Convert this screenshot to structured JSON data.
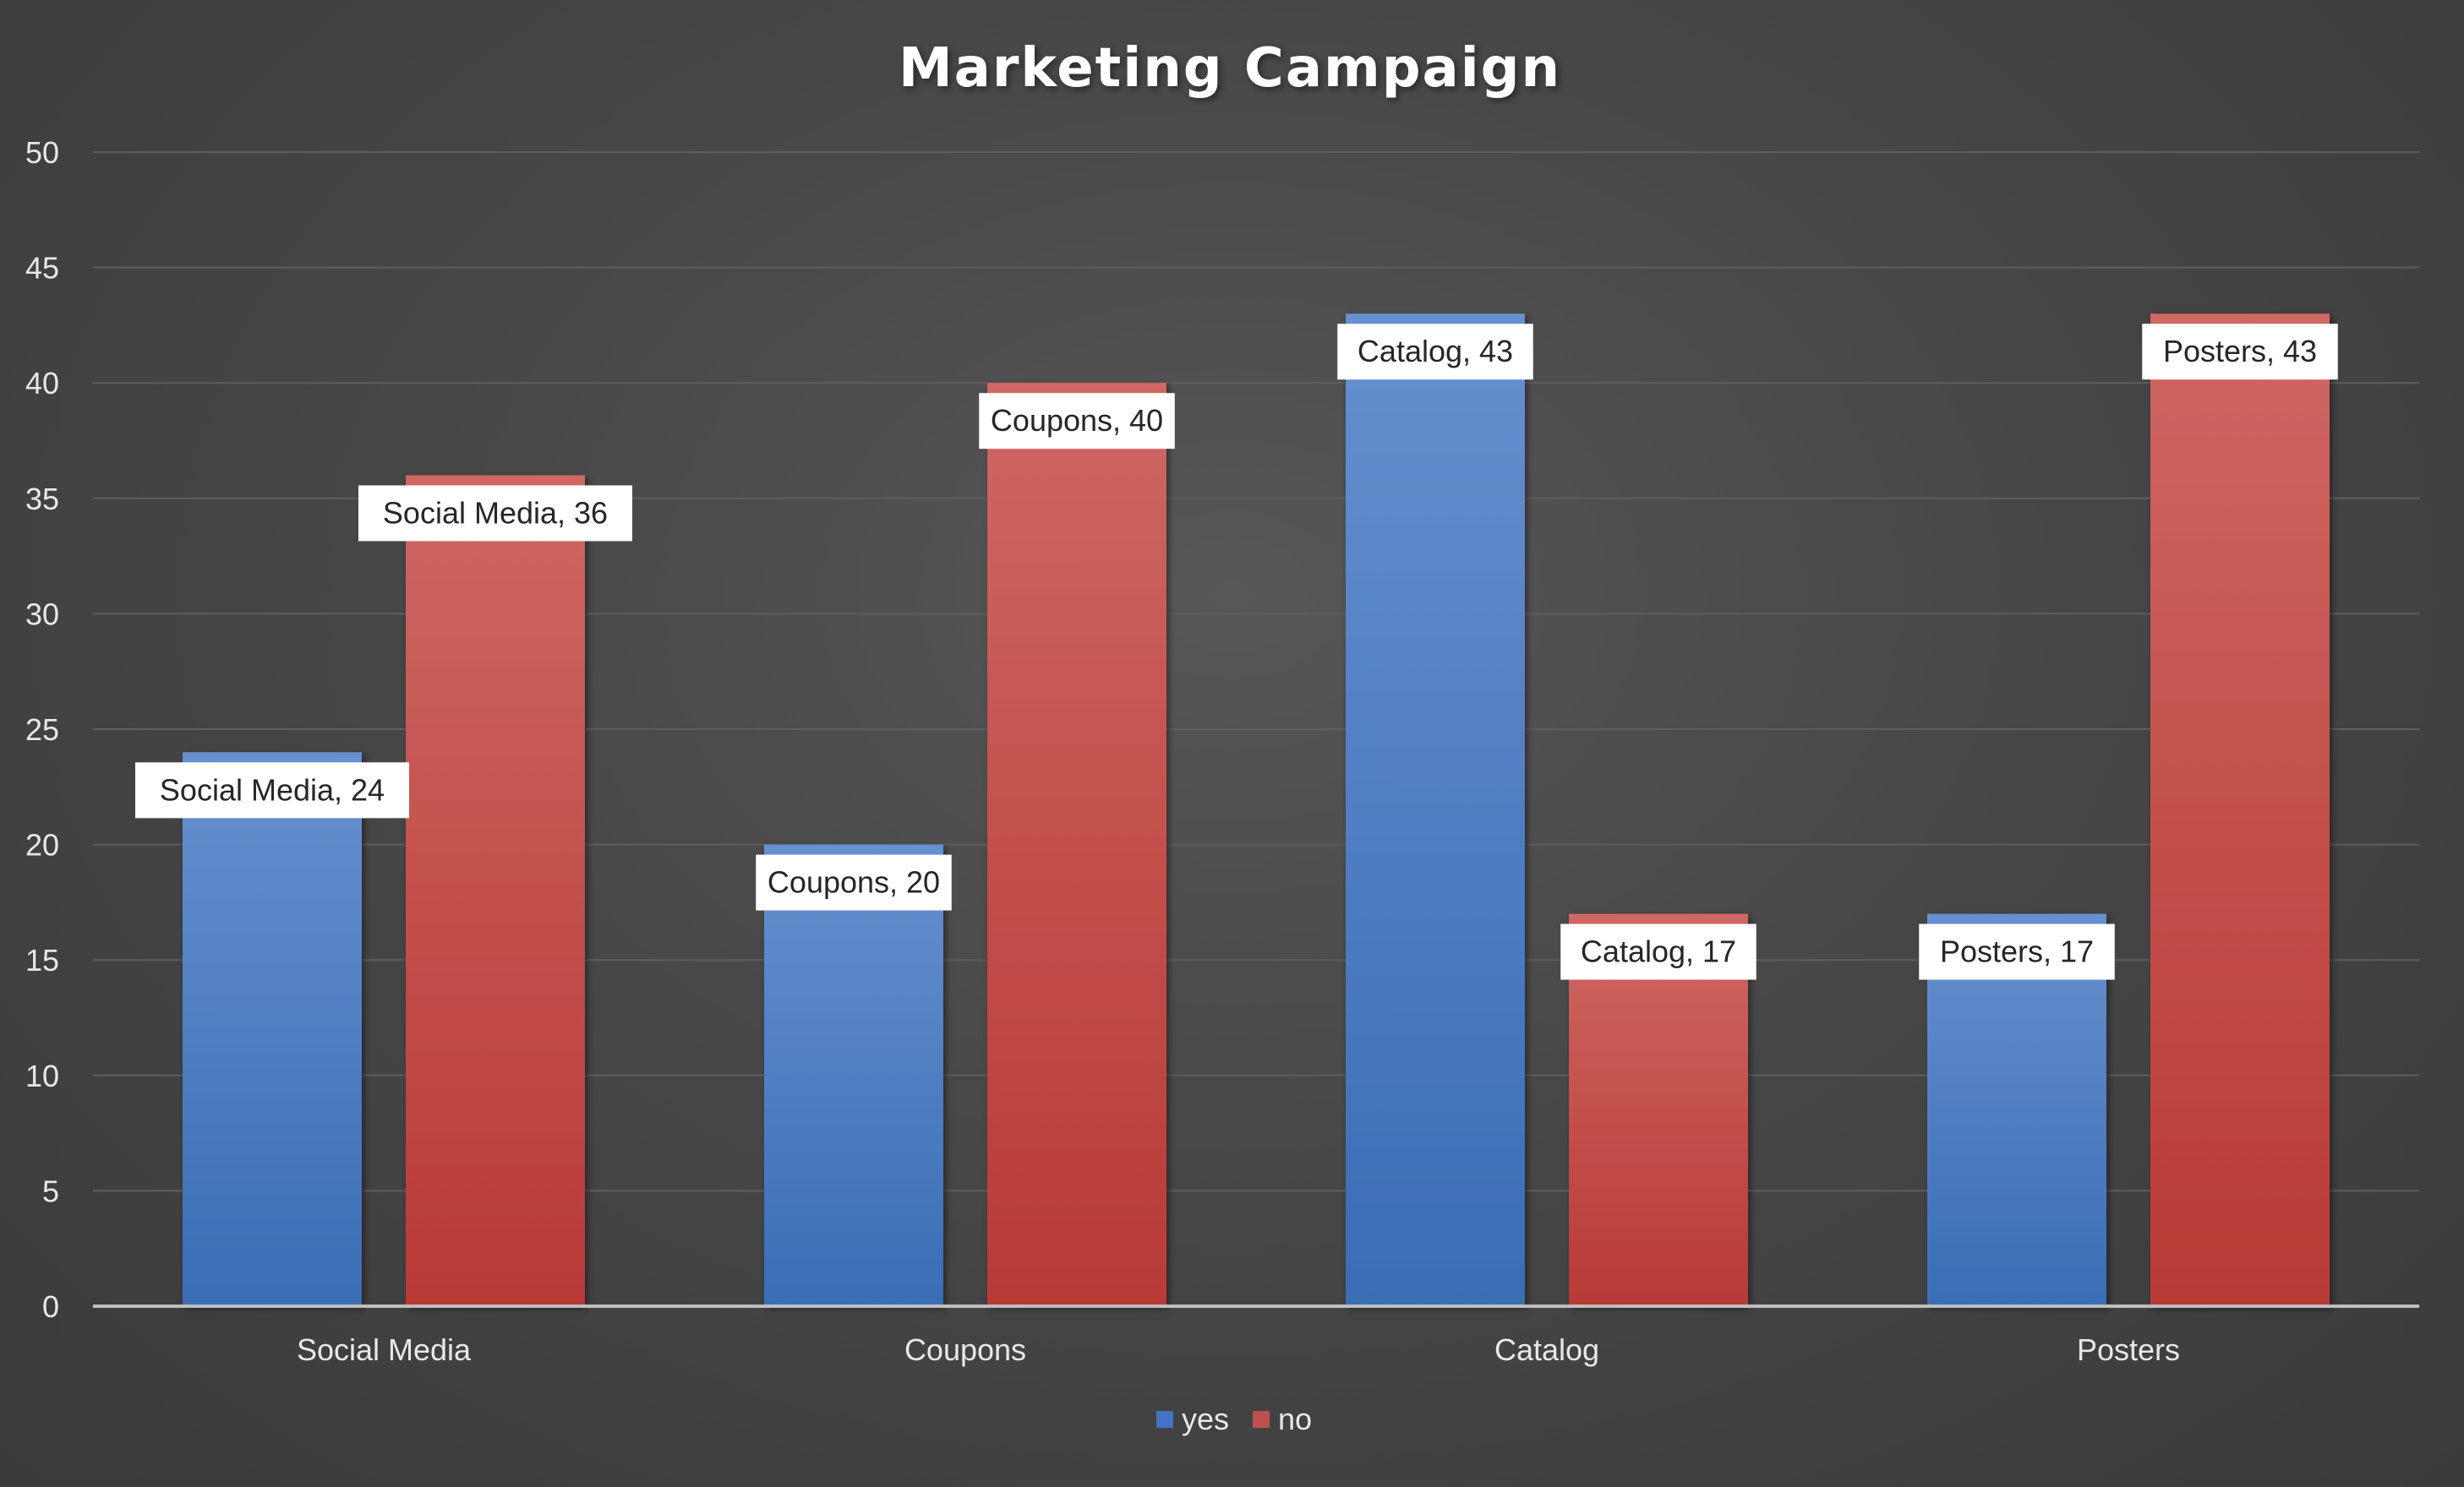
{
  "chart_data": {
    "type": "bar",
    "title": "Marketing Campaign",
    "xlabel": "",
    "ylabel": "",
    "categories": [
      "Social Media",
      "Coupons",
      "Catalog",
      "Posters"
    ],
    "series": [
      {
        "name": "yes",
        "values": [
          24,
          20,
          43,
          17
        ],
        "color": "#4472c4"
      },
      {
        "name": "no",
        "values": [
          36,
          40,
          17,
          43
        ],
        "color": "#c0504d"
      }
    ],
    "ylim": [
      0,
      50
    ],
    "yticks": [
      0,
      5,
      10,
      15,
      20,
      25,
      30,
      35,
      40,
      45,
      50
    ],
    "grid": true,
    "legend_position": "bottom",
    "data_labels": {
      "yes": [
        "Social Media, 24",
        "Coupons, 20",
        "Catalog, 43",
        "Posters, 17"
      ],
      "no": [
        "Social Media, 36",
        "Coupons, 40",
        "Catalog, 17",
        "Posters, 43"
      ]
    },
    "colors": {
      "background": "#474747",
      "gridline": "#5e5e5e",
      "axis_line": "#bfbfbf",
      "label_box": "#ffffff"
    }
  }
}
